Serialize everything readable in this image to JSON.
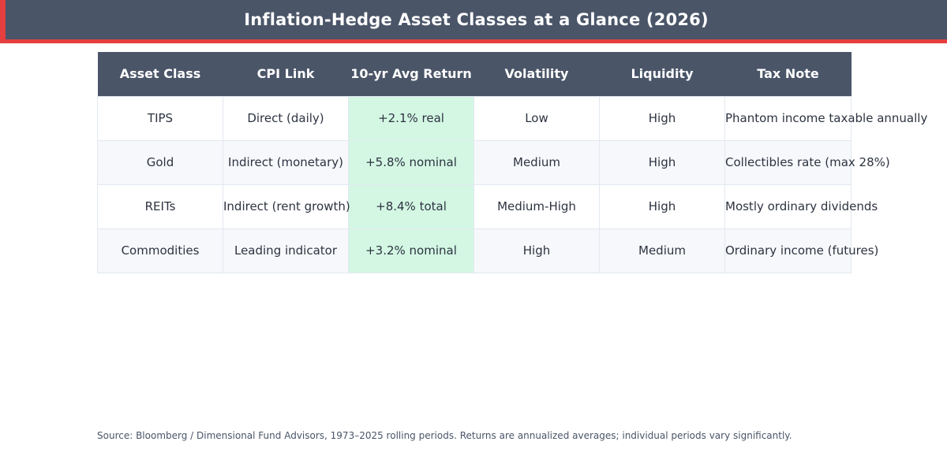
{
  "title": "Inflation-Hedge Asset Classes at a Glance (2026)",
  "colors": {
    "header_bg": "#4a5568",
    "accent": "#e53e3e",
    "highlight": "#d4f7e4"
  },
  "table": {
    "columns": [
      "Asset Class",
      "CPI Link",
      "10-yr Avg Return",
      "Volatility",
      "Liquidity",
      "Tax Note"
    ],
    "rows": [
      [
        "TIPS",
        "Direct (daily)",
        "+2.1% real",
        "Low",
        "High",
        "Phantom income taxable annually"
      ],
      [
        "Gold",
        "Indirect (monetary)",
        "+5.8% nominal",
        "Medium",
        "High",
        "Collectibles rate (max 28%)"
      ],
      [
        "REITs",
        "Indirect (rent growth)",
        "+8.4% total",
        "Medium-High",
        "High",
        "Mostly ordinary dividends"
      ],
      [
        "Commodities",
        "Leading indicator",
        "+3.2% nominal",
        "High",
        "Medium",
        "Ordinary income (futures)"
      ]
    ]
  },
  "source": "Source: Bloomberg / Dimensional Fund Advisors, 1973–2025 rolling periods. Returns are annualized averages; individual periods vary significantly."
}
